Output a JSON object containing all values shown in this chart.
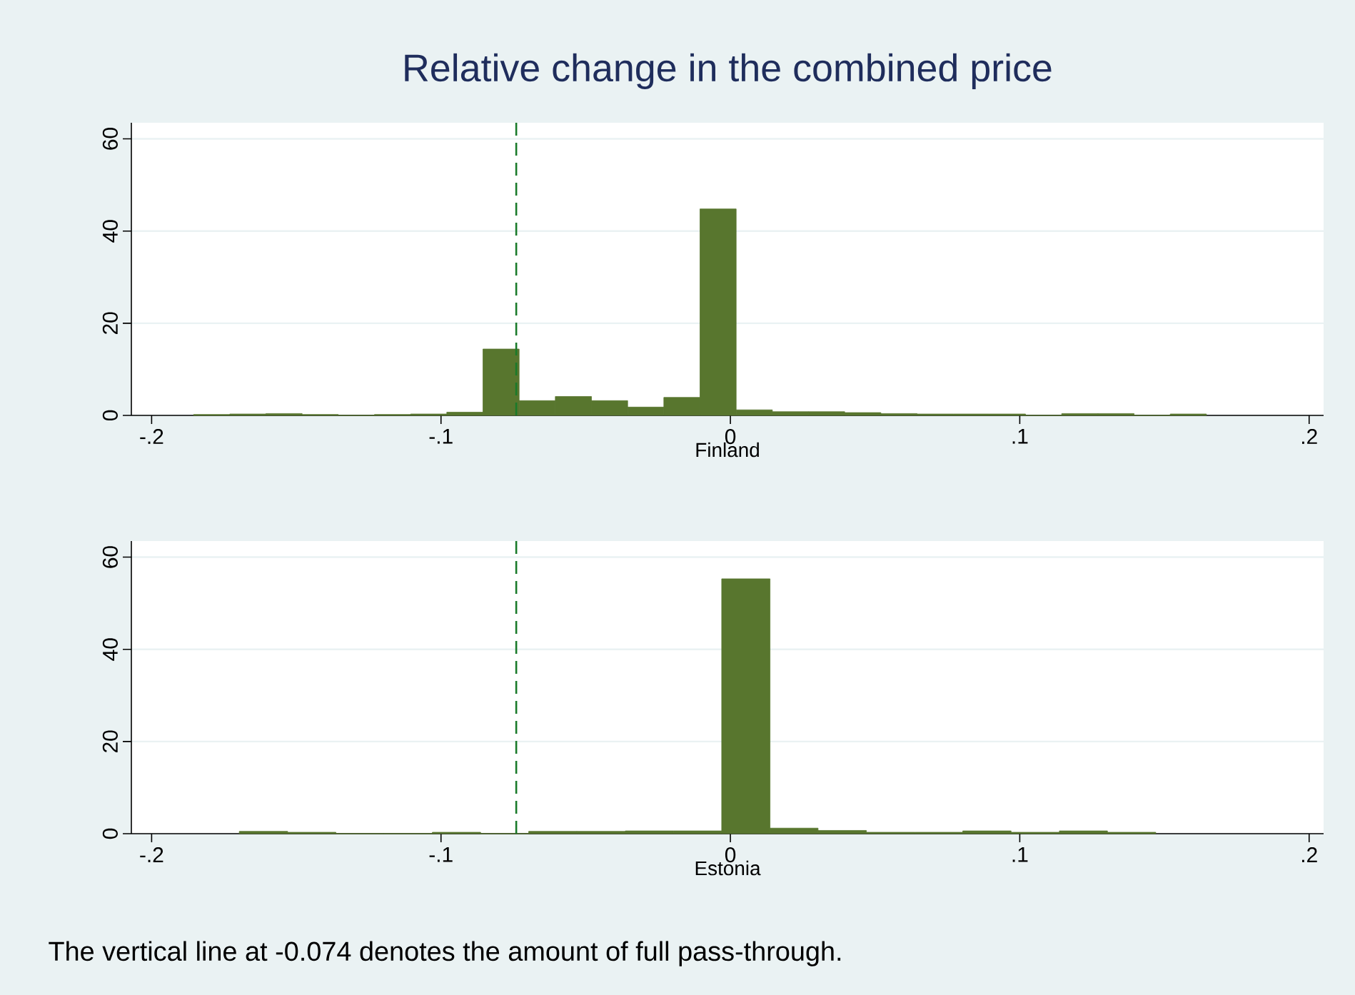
{
  "chart_data": [
    {
      "type": "histogram",
      "title": "Relative change in the combined price",
      "xlabel": "Finland",
      "color": "#58762e",
      "bins": [
        -0.1855,
        -0.173,
        -0.1605,
        -0.148,
        -0.1355,
        -0.123,
        -0.1105,
        -0.098,
        -0.0855,
        -0.073,
        -0.0605,
        -0.048,
        -0.0355,
        -0.023,
        -0.0105,
        0.002,
        0.0145,
        0.027,
        0.0395,
        0.052,
        0.0645,
        0.077,
        0.0895,
        0.102,
        0.1145,
        0.127,
        0.1395,
        0.152,
        0.1645
      ],
      "values": [
        0.2,
        0.3,
        0.4,
        0.2,
        0,
        0.2,
        0.3,
        0.7,
        14.4,
        3.2,
        4.1,
        3.2,
        1.8,
        3.9,
        44.8,
        1.2,
        0.8,
        0.8,
        0.6,
        0.4,
        0.3,
        0.3,
        0.3,
        0,
        0.4,
        0.4,
        0,
        0.3
      ],
      "xlim": [
        -0.207,
        0.205
      ],
      "ylim": [
        0,
        63.5
      ],
      "xticks": [
        {
          "value": -0.2,
          "label": "-.2"
        },
        {
          "value": -0.1,
          "label": "-.1"
        },
        0,
        {
          "value": 0.1,
          "label": ".1"
        },
        {
          "value": 0.2,
          "label": ".2"
        }
      ],
      "yticks": [
        0,
        20,
        40,
        60
      ],
      "grid": "y",
      "ref_lines": [
        {
          "axis": "x",
          "value": -0.074,
          "color": "#1a7a2a",
          "line_style": "dashed"
        }
      ]
    },
    {
      "type": "histogram",
      "xlabel": "Estonia",
      "color": "#58762e",
      "bins": [
        -0.1697,
        -0.153,
        -0.1363,
        -0.1197,
        -0.103,
        -0.0863,
        -0.0697,
        -0.053,
        -0.0363,
        -0.0197,
        -0.003,
        0.0137,
        0.0303,
        0.047,
        0.0637,
        0.0803,
        0.097,
        0.1137,
        0.1303,
        0.147
      ],
      "values": [
        0.5,
        0.3,
        0,
        0,
        0.3,
        0,
        0.5,
        0.5,
        0.6,
        0.6,
        55.3,
        1.2,
        0.7,
        0.3,
        0.3,
        0.6,
        0.3,
        0.6,
        0.3
      ],
      "xlim": [
        -0.207,
        0.205
      ],
      "ylim": [
        0,
        63.5
      ],
      "xticks": [
        {
          "value": -0.2,
          "label": "-.2"
        },
        {
          "value": -0.1,
          "label": "-.1"
        },
        0,
        {
          "value": 0.1,
          "label": ".1"
        },
        {
          "value": 0.2,
          "label": ".2"
        }
      ],
      "yticks": [
        0,
        20,
        40,
        60
      ],
      "grid": "y",
      "ref_lines": [
        {
          "axis": "x",
          "value": -0.074,
          "color": "#1a7a2a",
          "line_style": "dashed"
        }
      ],
      "annotations": [
        "The vertical line at -0.074 denotes the amount of full pass-through."
      ]
    }
  ]
}
